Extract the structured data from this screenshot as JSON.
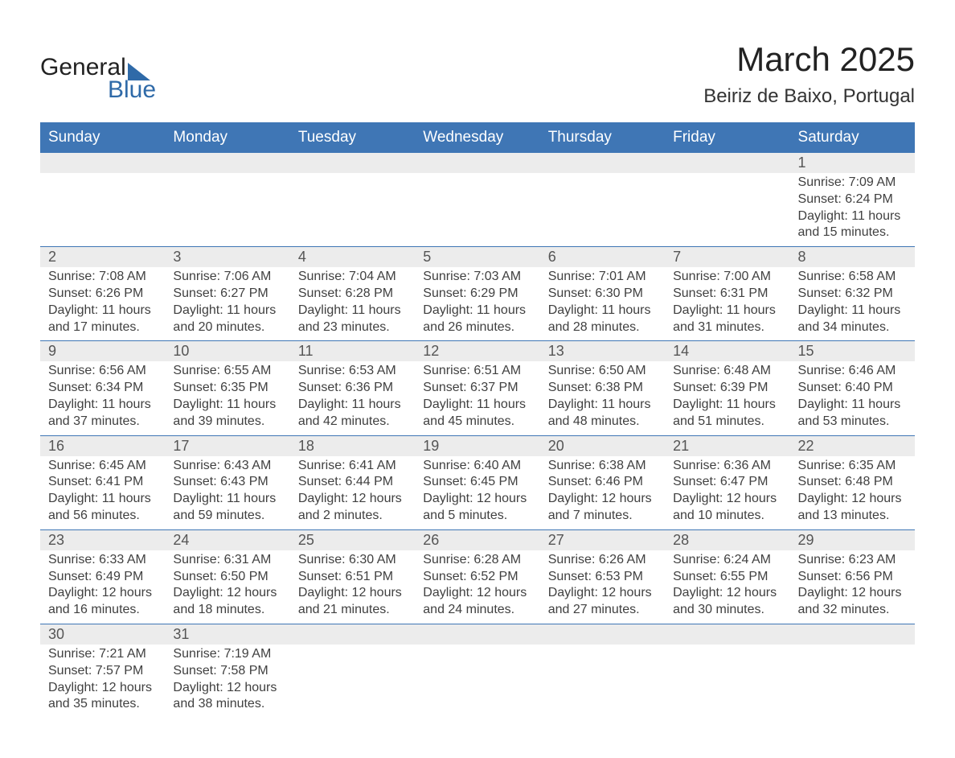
{
  "logo": {
    "word1": "General",
    "word2": "Blue",
    "tri_color": "#2f6aa8"
  },
  "header": {
    "title": "March 2025",
    "location": "Beiriz de Baixo, Portugal"
  },
  "colors": {
    "header_bg": "#3f76b5",
    "row_sep": "#3f76b5",
    "daynum_bg": "#ececec",
    "text": "#404040"
  },
  "daynames": [
    "Sunday",
    "Monday",
    "Tuesday",
    "Wednesday",
    "Thursday",
    "Friday",
    "Saturday"
  ],
  "weeks": [
    [
      null,
      null,
      null,
      null,
      null,
      null,
      {
        "n": "1",
        "sr": "Sunrise: 7:09 AM",
        "ss": "Sunset: 6:24 PM",
        "d1": "Daylight: 11 hours",
        "d2": "and 15 minutes."
      }
    ],
    [
      {
        "n": "2",
        "sr": "Sunrise: 7:08 AM",
        "ss": "Sunset: 6:26 PM",
        "d1": "Daylight: 11 hours",
        "d2": "and 17 minutes."
      },
      {
        "n": "3",
        "sr": "Sunrise: 7:06 AM",
        "ss": "Sunset: 6:27 PM",
        "d1": "Daylight: 11 hours",
        "d2": "and 20 minutes."
      },
      {
        "n": "4",
        "sr": "Sunrise: 7:04 AM",
        "ss": "Sunset: 6:28 PM",
        "d1": "Daylight: 11 hours",
        "d2": "and 23 minutes."
      },
      {
        "n": "5",
        "sr": "Sunrise: 7:03 AM",
        "ss": "Sunset: 6:29 PM",
        "d1": "Daylight: 11 hours",
        "d2": "and 26 minutes."
      },
      {
        "n": "6",
        "sr": "Sunrise: 7:01 AM",
        "ss": "Sunset: 6:30 PM",
        "d1": "Daylight: 11 hours",
        "d2": "and 28 minutes."
      },
      {
        "n": "7",
        "sr": "Sunrise: 7:00 AM",
        "ss": "Sunset: 6:31 PM",
        "d1": "Daylight: 11 hours",
        "d2": "and 31 minutes."
      },
      {
        "n": "8",
        "sr": "Sunrise: 6:58 AM",
        "ss": "Sunset: 6:32 PM",
        "d1": "Daylight: 11 hours",
        "d2": "and 34 minutes."
      }
    ],
    [
      {
        "n": "9",
        "sr": "Sunrise: 6:56 AM",
        "ss": "Sunset: 6:34 PM",
        "d1": "Daylight: 11 hours",
        "d2": "and 37 minutes."
      },
      {
        "n": "10",
        "sr": "Sunrise: 6:55 AM",
        "ss": "Sunset: 6:35 PM",
        "d1": "Daylight: 11 hours",
        "d2": "and 39 minutes."
      },
      {
        "n": "11",
        "sr": "Sunrise: 6:53 AM",
        "ss": "Sunset: 6:36 PM",
        "d1": "Daylight: 11 hours",
        "d2": "and 42 minutes."
      },
      {
        "n": "12",
        "sr": "Sunrise: 6:51 AM",
        "ss": "Sunset: 6:37 PM",
        "d1": "Daylight: 11 hours",
        "d2": "and 45 minutes."
      },
      {
        "n": "13",
        "sr": "Sunrise: 6:50 AM",
        "ss": "Sunset: 6:38 PM",
        "d1": "Daylight: 11 hours",
        "d2": "and 48 minutes."
      },
      {
        "n": "14",
        "sr": "Sunrise: 6:48 AM",
        "ss": "Sunset: 6:39 PM",
        "d1": "Daylight: 11 hours",
        "d2": "and 51 minutes."
      },
      {
        "n": "15",
        "sr": "Sunrise: 6:46 AM",
        "ss": "Sunset: 6:40 PM",
        "d1": "Daylight: 11 hours",
        "d2": "and 53 minutes."
      }
    ],
    [
      {
        "n": "16",
        "sr": "Sunrise: 6:45 AM",
        "ss": "Sunset: 6:41 PM",
        "d1": "Daylight: 11 hours",
        "d2": "and 56 minutes."
      },
      {
        "n": "17",
        "sr": "Sunrise: 6:43 AM",
        "ss": "Sunset: 6:43 PM",
        "d1": "Daylight: 11 hours",
        "d2": "and 59 minutes."
      },
      {
        "n": "18",
        "sr": "Sunrise: 6:41 AM",
        "ss": "Sunset: 6:44 PM",
        "d1": "Daylight: 12 hours",
        "d2": "and 2 minutes."
      },
      {
        "n": "19",
        "sr": "Sunrise: 6:40 AM",
        "ss": "Sunset: 6:45 PM",
        "d1": "Daylight: 12 hours",
        "d2": "and 5 minutes."
      },
      {
        "n": "20",
        "sr": "Sunrise: 6:38 AM",
        "ss": "Sunset: 6:46 PM",
        "d1": "Daylight: 12 hours",
        "d2": "and 7 minutes."
      },
      {
        "n": "21",
        "sr": "Sunrise: 6:36 AM",
        "ss": "Sunset: 6:47 PM",
        "d1": "Daylight: 12 hours",
        "d2": "and 10 minutes."
      },
      {
        "n": "22",
        "sr": "Sunrise: 6:35 AM",
        "ss": "Sunset: 6:48 PM",
        "d1": "Daylight: 12 hours",
        "d2": "and 13 minutes."
      }
    ],
    [
      {
        "n": "23",
        "sr": "Sunrise: 6:33 AM",
        "ss": "Sunset: 6:49 PM",
        "d1": "Daylight: 12 hours",
        "d2": "and 16 minutes."
      },
      {
        "n": "24",
        "sr": "Sunrise: 6:31 AM",
        "ss": "Sunset: 6:50 PM",
        "d1": "Daylight: 12 hours",
        "d2": "and 18 minutes."
      },
      {
        "n": "25",
        "sr": "Sunrise: 6:30 AM",
        "ss": "Sunset: 6:51 PM",
        "d1": "Daylight: 12 hours",
        "d2": "and 21 minutes."
      },
      {
        "n": "26",
        "sr": "Sunrise: 6:28 AM",
        "ss": "Sunset: 6:52 PM",
        "d1": "Daylight: 12 hours",
        "d2": "and 24 minutes."
      },
      {
        "n": "27",
        "sr": "Sunrise: 6:26 AM",
        "ss": "Sunset: 6:53 PM",
        "d1": "Daylight: 12 hours",
        "d2": "and 27 minutes."
      },
      {
        "n": "28",
        "sr": "Sunrise: 6:24 AM",
        "ss": "Sunset: 6:55 PM",
        "d1": "Daylight: 12 hours",
        "d2": "and 30 minutes."
      },
      {
        "n": "29",
        "sr": "Sunrise: 6:23 AM",
        "ss": "Sunset: 6:56 PM",
        "d1": "Daylight: 12 hours",
        "d2": "and 32 minutes."
      }
    ],
    [
      {
        "n": "30",
        "sr": "Sunrise: 7:21 AM",
        "ss": "Sunset: 7:57 PM",
        "d1": "Daylight: 12 hours",
        "d2": "and 35 minutes."
      },
      {
        "n": "31",
        "sr": "Sunrise: 7:19 AM",
        "ss": "Sunset: 7:58 PM",
        "d1": "Daylight: 12 hours",
        "d2": "and 38 minutes."
      },
      null,
      null,
      null,
      null,
      null
    ]
  ]
}
